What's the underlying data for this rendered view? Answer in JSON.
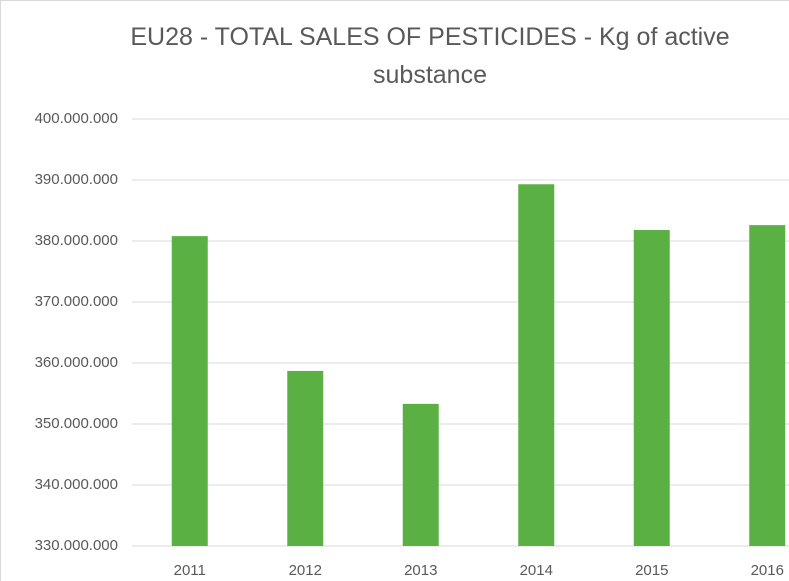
{
  "chart_data": {
    "type": "bar",
    "title": "EU28 - TOTAL SALES OF PESTICIDES - Kg of active substance",
    "categories": [
      "2011",
      "2012",
      "2013",
      "2014",
      "2015",
      "2016"
    ],
    "values": [
      380800000,
      358700000,
      353300000,
      389300000,
      381800000,
      382600000
    ],
    "color": "#5bb043",
    "ylim": [
      330000000,
      400000000
    ],
    "yticks": [
      {
        "value": 330000000,
        "label": "330.000.000"
      },
      {
        "value": 340000000,
        "label": "340.000.000"
      },
      {
        "value": 350000000,
        "label": "350.000.000"
      },
      {
        "value": 360000000,
        "label": "360.000.000"
      },
      {
        "value": 370000000,
        "label": "370.000.000"
      },
      {
        "value": 380000000,
        "label": "380.000.000"
      },
      {
        "value": 390000000,
        "label": "390.000.000"
      },
      {
        "value": 400000000,
        "label": "400.000.000"
      }
    ],
    "grid": true
  }
}
